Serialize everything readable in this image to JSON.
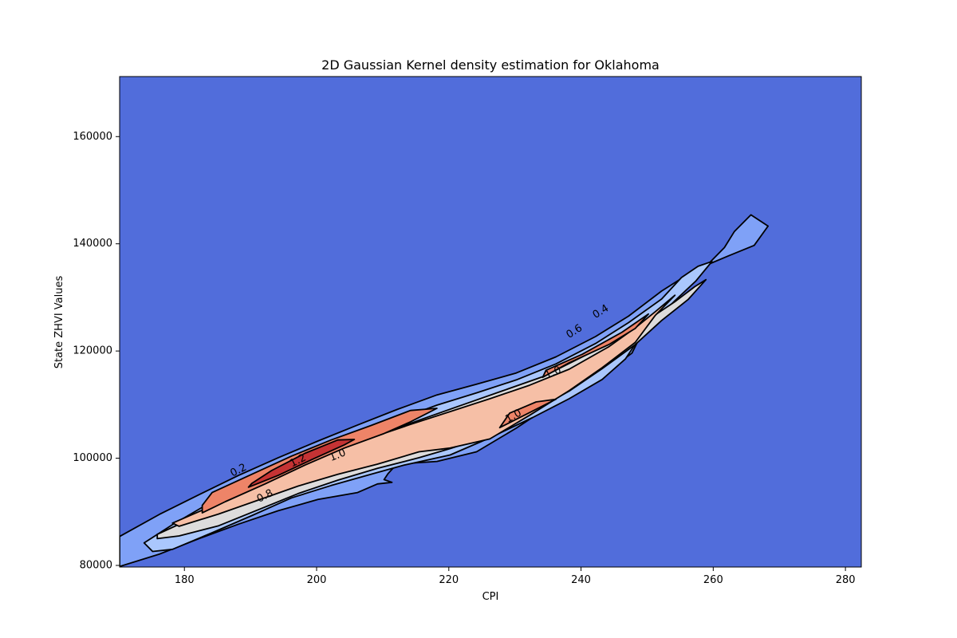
{
  "chart_data": {
    "type": "contour",
    "title": "2D Gaussian Kernel density estimation for Oklahoma",
    "xlabel": "CPI",
    "ylabel": "State ZHVI Values",
    "xlim": [
      170.2,
      282.4
    ],
    "ylim": [
      79700,
      171200
    ],
    "x_ticks": [
      180,
      200,
      220,
      240,
      260,
      280
    ],
    "y_ticks": [
      80000,
      100000,
      120000,
      140000,
      160000
    ],
    "x_tick_labels": [
      "180",
      "200",
      "220",
      "240",
      "260",
      "280"
    ],
    "y_tick_labels": [
      "80000",
      "100000",
      "120000",
      "140000",
      "160000"
    ],
    "grid": false,
    "legend": "none",
    "colormap": "coolwarm",
    "background_color": "#516ddb",
    "contour_levels": [
      {
        "level": 0.2,
        "color": "#7fa1f7",
        "outline": [
          [
            170.2,
            85400
          ],
          [
            176.2,
            89500
          ],
          [
            182.2,
            93200
          ],
          [
            188.2,
            96800
          ],
          [
            194.2,
            100100
          ],
          [
            200.2,
            103200
          ],
          [
            206.2,
            106200
          ],
          [
            212.2,
            109100
          ],
          [
            218.2,
            111800
          ],
          [
            224.2,
            113800
          ],
          [
            230.2,
            115900
          ],
          [
            236.2,
            118900
          ],
          [
            242.2,
            122700
          ],
          [
            247.2,
            126500
          ],
          [
            252.2,
            131200
          ],
          [
            257.2,
            135100
          ],
          [
            262.2,
            137700
          ],
          [
            266.2,
            139700
          ],
          [
            268.3,
            143300
          ],
          [
            265.7,
            145400
          ],
          [
            263.2,
            142300
          ],
          [
            261.7,
            139300
          ],
          [
            259.7,
            136800
          ],
          [
            257.7,
            134200
          ],
          [
            255.7,
            131700
          ],
          [
            252.2,
            127300
          ],
          [
            249.2,
            123300
          ],
          [
            247.7,
            119600
          ],
          [
            244.2,
            116400
          ],
          [
            239.7,
            113200
          ],
          [
            235.2,
            109700
          ],
          [
            230.2,
            105600
          ],
          [
            224.2,
            101200
          ],
          [
            218.2,
            99400
          ],
          [
            213.2,
            99000
          ],
          [
            211.9,
            98600
          ],
          [
            210.8,
            97100
          ],
          [
            210.2,
            96000
          ],
          [
            211.4,
            95500
          ],
          [
            209.2,
            95200
          ],
          [
            206.2,
            93600
          ],
          [
            200.2,
            92300
          ],
          [
            194.2,
            90200
          ],
          [
            188.2,
            87700
          ],
          [
            182.2,
            85000
          ],
          [
            176.2,
            82100
          ],
          [
            170.2,
            79800
          ]
        ]
      },
      {
        "level": 0.4,
        "color": "#aac7fd",
        "outline": [
          [
            173.9,
            84200
          ],
          [
            178.2,
            87600
          ],
          [
            183.2,
            91200
          ],
          [
            188.2,
            94500
          ],
          [
            194.2,
            98300
          ],
          [
            200.2,
            101500
          ],
          [
            206.2,
            104500
          ],
          [
            212.2,
            107200
          ],
          [
            218.2,
            109900
          ],
          [
            224.2,
            112200
          ],
          [
            230.2,
            114600
          ],
          [
            236.2,
            117600
          ],
          [
            242.2,
            121400
          ],
          [
            247.2,
            125300
          ],
          [
            252.2,
            129700
          ],
          [
            255.2,
            133700
          ],
          [
            257.7,
            135800
          ],
          [
            259.8,
            136700
          ],
          [
            257.4,
            133100
          ],
          [
            254.2,
            129400
          ],
          [
            251.2,
            125700
          ],
          [
            248.7,
            122200
          ],
          [
            246.7,
            118500
          ],
          [
            243.2,
            114700
          ],
          [
            238.2,
            111100
          ],
          [
            232.7,
            107600
          ],
          [
            226.2,
            103800
          ],
          [
            220.2,
            100600
          ],
          [
            213.2,
            98700
          ],
          [
            208.2,
            97000
          ],
          [
            202.2,
            94900
          ],
          [
            196.2,
            92600
          ],
          [
            190.2,
            89300
          ],
          [
            184.2,
            86100
          ],
          [
            178.2,
            83000
          ],
          [
            175.2,
            82600
          ]
        ]
      },
      {
        "level": 0.6,
        "color": "#dddcdc",
        "outline": [
          [
            175.9,
            85800
          ],
          [
            181.2,
            88800
          ],
          [
            186.2,
            91800
          ],
          [
            192.2,
            95400
          ],
          [
            198.2,
            98800
          ],
          [
            204.2,
            101800
          ],
          [
            210.2,
            104700
          ],
          [
            216.2,
            107400
          ],
          [
            222.2,
            110000
          ],
          [
            228.2,
            112600
          ],
          [
            234.2,
            115200
          ],
          [
            240.2,
            118900
          ],
          [
            245.7,
            122400
          ],
          [
            250.2,
            125900
          ],
          [
            254.2,
            129200
          ],
          [
            257.2,
            132000
          ],
          [
            258.9,
            133300
          ],
          [
            256.2,
            129600
          ],
          [
            252.2,
            125700
          ],
          [
            248.2,
            121200
          ],
          [
            243.2,
            116700
          ],
          [
            238.2,
            112500
          ],
          [
            232.2,
            108400
          ],
          [
            225.8,
            104000
          ],
          [
            220.2,
            101800
          ],
          [
            215.5,
            100100
          ],
          [
            209.2,
            98100
          ],
          [
            203.2,
            95900
          ],
          [
            197.2,
            93400
          ],
          [
            191.2,
            90400
          ],
          [
            185.2,
            87400
          ],
          [
            179.2,
            85500
          ],
          [
            175.9,
            85000
          ]
        ]
      },
      {
        "level": 0.8,
        "color": "#f6bfa6",
        "outline": [
          [
            178.2,
            87900
          ],
          [
            184.2,
            91100
          ],
          [
            190.2,
            94400
          ],
          [
            196.2,
            97900
          ],
          [
            202.2,
            101000
          ],
          [
            208.2,
            103800
          ],
          [
            214.2,
            106300
          ],
          [
            220.2,
            108700
          ],
          [
            226.2,
            111100
          ],
          [
            232.2,
            113600
          ],
          [
            238.2,
            116600
          ],
          [
            244.2,
            120800
          ],
          [
            248.2,
            124300
          ],
          [
            251.2,
            127300
          ],
          [
            254.2,
            130400
          ],
          [
            251.2,
            126600
          ],
          [
            248.2,
            121600
          ],
          [
            243.2,
            116900
          ],
          [
            238.2,
            112600
          ],
          [
            232.2,
            108000
          ],
          [
            226.2,
            103600
          ],
          [
            220.2,
            101900
          ],
          [
            215.5,
            101200
          ],
          [
            209.2,
            98900
          ],
          [
            203.2,
            97000
          ],
          [
            197.2,
            94800
          ],
          [
            191.2,
            92200
          ],
          [
            185.2,
            89600
          ],
          [
            179.2,
            87300
          ]
        ]
      },
      {
        "level": 1.0,
        "color": "#ee8468",
        "outline": [
          [
            [
              182.7,
              89800
            ],
            [
              186.2,
              91900
            ],
            [
              192.2,
              95200
            ],
            [
              198.2,
              98700
            ],
            [
              204.2,
              101900
            ],
            [
              210.2,
              104600
            ],
            [
              214.2,
              106800
            ],
            [
              218.2,
              109300
            ],
            [
              214.2,
              108900
            ],
            [
              208.2,
              106100
            ],
            [
              202.2,
              103400
            ],
            [
              196.2,
              100400
            ],
            [
              190.2,
              97000
            ],
            [
              184.2,
              93600
            ],
            [
              182.7,
              91200
            ]
          ],
          [
            [
              227.7,
              105700
            ],
            [
              232.2,
              108500
            ],
            [
              236.2,
              111000
            ],
            [
              233.2,
              110500
            ],
            [
              229.2,
              108400
            ]
          ],
          [
            [
              234.2,
              115100
            ],
            [
              238.2,
              117800
            ],
            [
              244.2,
              121200
            ],
            [
              248.2,
              124200
            ],
            [
              250.2,
              126900
            ],
            [
              246.2,
              123500
            ],
            [
              240.2,
              119400
            ],
            [
              234.7,
              116400
            ]
          ]
        ]
      },
      {
        "level": 1.2,
        "color": "#c53334",
        "outline": [
          [
            189.7,
            94600
          ],
          [
            194.2,
            96800
          ],
          [
            199.2,
            99700
          ],
          [
            204.2,
            102500
          ],
          [
            205.7,
            103500
          ],
          [
            203.2,
            103400
          ],
          [
            198.2,
            100900
          ],
          [
            193.2,
            97700
          ],
          [
            190.2,
            95300
          ]
        ]
      }
    ],
    "contour_labels": [
      {
        "text": "0.2",
        "x": 188.2,
        "y": 97700,
        "angle": -27
      },
      {
        "text": "0.4",
        "x": 243.0,
        "y": 127300,
        "angle": -32
      },
      {
        "text": "0.6",
        "x": 239.0,
        "y": 123600,
        "angle": -32
      },
      {
        "text": "0.8",
        "x": 192.2,
        "y": 92900,
        "angle": -27
      },
      {
        "text": "1.0",
        "x": 203.2,
        "y": 100500,
        "angle": -22
      },
      {
        "text": "1.0",
        "x": 229.8,
        "y": 107800,
        "angle": -29
      },
      {
        "text": "1.0",
        "x": 235.8,
        "y": 115900,
        "angle": -24
      },
      {
        "text": "1.2",
        "x": 197.2,
        "y": 99500,
        "angle": -27
      }
    ]
  }
}
